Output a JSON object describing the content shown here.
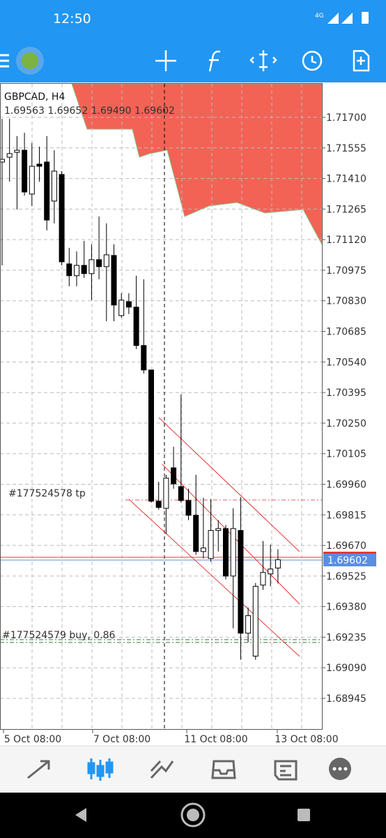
{
  "status_bar": {
    "time": "12:50",
    "network": "4G"
  },
  "chart": {
    "type": "candlestick",
    "symbol": "GBPCAD, H4",
    "ohlc_label": "1.69563 1.69652 1.69490 1.69602",
    "open": [
      1.71488,
      1.71511,
      1.71534,
      1.71544,
      1.71336,
      1.71478,
      1.71488,
      1.71303,
      1.71429,
      1.71005,
      1.70949,
      1.70998,
      1.70959,
      1.71025,
      1.70992,
      1.71045,
      1.7076,
      1.70826,
      1.708,
      1.70618,
      1.70502,
      1.6988,
      1.69846,
      1.70038,
      1.69949,
      1.69883,
      1.69813,
      1.69641,
      1.69608,
      1.69741,
      1.6975,
      1.69525,
      1.69741,
      1.69254,
      1.69145,
      1.69482,
      1.69535,
      1.69563
    ],
    "high": [
      1.71693,
      1.71693,
      1.71611,
      1.71627,
      1.71578,
      1.71561,
      1.71611,
      1.71544,
      1.71445,
      1.71081,
      1.71064,
      1.71114,
      1.71098,
      1.7123,
      1.71197,
      1.71098,
      1.70866,
      1.70866,
      1.70949,
      1.70932,
      1.70502,
      1.69972,
      1.70005,
      1.70138,
      1.70386,
      1.69939,
      1.70005,
      1.69896,
      1.69889,
      1.6979,
      1.69767,
      1.69846,
      1.69899,
      1.69376,
      1.69492,
      1.69691,
      1.69674,
      1.69652
    ],
    "low": [
      1.70998,
      1.71395,
      1.71263,
      1.71329,
      1.7128,
      1.71395,
      1.71164,
      1.71197,
      1.70998,
      1.70899,
      1.70899,
      1.70939,
      1.70833,
      1.70932,
      1.70733,
      1.70733,
      1.7075,
      1.70767,
      1.70601,
      1.70485,
      1.69873,
      1.6984,
      1.69724,
      1.69939,
      1.69873,
      1.6979,
      1.69625,
      1.69608,
      1.69592,
      1.69641,
      1.69509,
      1.69277,
      1.69128,
      1.69211,
      1.69128,
      1.69459,
      1.69476,
      1.6949
    ],
    "close": [
      1.71501,
      1.71528,
      1.71544,
      1.71346,
      1.71468,
      1.71468,
      1.71213,
      1.71445,
      1.71015,
      1.70949,
      1.70998,
      1.70959,
      1.71025,
      1.70992,
      1.71048,
      1.7081,
      1.70833,
      1.708,
      1.70618,
      1.70502,
      1.6988,
      1.6985,
      1.69989,
      1.69962,
      1.69883,
      1.69813,
      1.69641,
      1.69658,
      1.69741,
      1.6975,
      1.69525,
      1.6975,
      1.69254,
      1.69337,
      1.69476,
      1.69542,
      1.69558,
      1.69602
    ],
    "ylim": [
      1.68796,
      1.71859
    ],
    "yticks": [
      {
        "value": 1.717,
        "label": "1.71700"
      },
      {
        "value": 1.71555,
        "label": "1.71555"
      },
      {
        "value": 1.7141,
        "label": "1.71410"
      },
      {
        "value": 1.71265,
        "label": "1.71265"
      },
      {
        "value": 1.7112,
        "label": "1.71120"
      },
      {
        "value": 1.70975,
        "label": "1.70975"
      },
      {
        "value": 1.7083,
        "label": "1.70830"
      },
      {
        "value": 1.70685,
        "label": "1.70685"
      },
      {
        "value": 1.7054,
        "label": "1.70540"
      },
      {
        "value": 1.70395,
        "label": "1.70395"
      },
      {
        "value": 1.7025,
        "label": "1.70250"
      },
      {
        "value": 1.70105,
        "label": "1.70105"
      },
      {
        "value": 1.6996,
        "label": "1.69960"
      },
      {
        "value": 1.69815,
        "label": "1.69815"
      },
      {
        "value": 1.6967,
        "label": "1.69670"
      },
      {
        "value": 1.69525,
        "label": "1.69525"
      },
      {
        "value": 1.6938,
        "label": "1.69380"
      },
      {
        "value": 1.69235,
        "label": "1.69235"
      },
      {
        "value": 1.6909,
        "label": "1.69090"
      },
      {
        "value": 1.68945,
        "label": "1.68945"
      }
    ],
    "xlabels": [
      "5 Oct 08:00",
      "7 Oct 08:00",
      "11 Oct 08:00",
      "13 Oct 08:00"
    ],
    "price_tag": "1.69602",
    "annotations": [
      "#177524578 tp",
      "#177524579 buy, 0.86"
    ]
  }
}
